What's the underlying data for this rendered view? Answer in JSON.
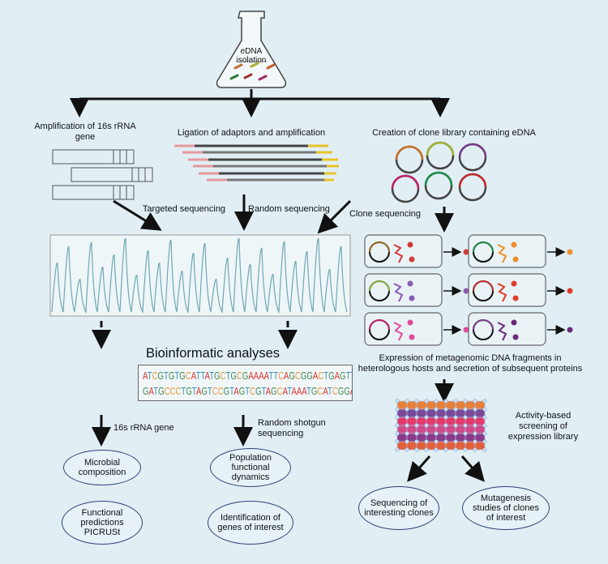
{
  "flask": {
    "label": "eDNA\nisolation"
  },
  "branches": {
    "amplification": "Amplification of 16s rRNA gene",
    "ligation": "Ligation of adaptors and amplification",
    "clone_library": "Creation of clone library containing eDNA"
  },
  "sequencing": {
    "targeted": "Targeted sequencing",
    "random": "Random sequencing",
    "clone": "Clone sequencing"
  },
  "bioinformatics": {
    "title": "Bioinformatic analyses",
    "seq_line1": "ATCGTGTGCATTATGCTGCGAAAATTCAGCGGACTGAGTT",
    "seq_line2": "GATGCCCTGTAGTCCGTAGTCGTAGCATAAATGCATCGGAT"
  },
  "base_colors": {
    "A": "#d9312b",
    "T": "#3a8fb7",
    "C": "#e8953a",
    "G": "#3f8a4f"
  },
  "expression": {
    "label": "Expression of metagenomic DNA fragments in heterologous hosts and secretion of subsequent proteins"
  },
  "clones": [
    {
      "ring": "#9a6a2a",
      "protein": "#d23a3a"
    },
    {
      "ring": "#1f8a4a",
      "protein": "#ee8f2a"
    },
    {
      "ring": "#8ab03a",
      "protein": "#8a5ab0"
    },
    {
      "ring": "#c02a2a",
      "protein": "#e23a2a"
    },
    {
      "ring": "#c0206a",
      "protein": "#e04a9a"
    },
    {
      "ring": "#7a3a8a",
      "protein": "#6a2a7a"
    }
  ],
  "screening": {
    "label": "Activity-based screening of expression library"
  },
  "left_branch": {
    "label": "16s rRNA gene",
    "outcomes": [
      "Microbial composition",
      "Functional predictions PICRUSt"
    ]
  },
  "mid_branch": {
    "label": "Random shotgun sequencing",
    "outcomes": [
      "Population functional dynamics",
      "Identification of genes of interest"
    ]
  },
  "right_outcomes": [
    "Sequencing of interesting clones",
    "Mutagenesis studies of clones of interest"
  ]
}
